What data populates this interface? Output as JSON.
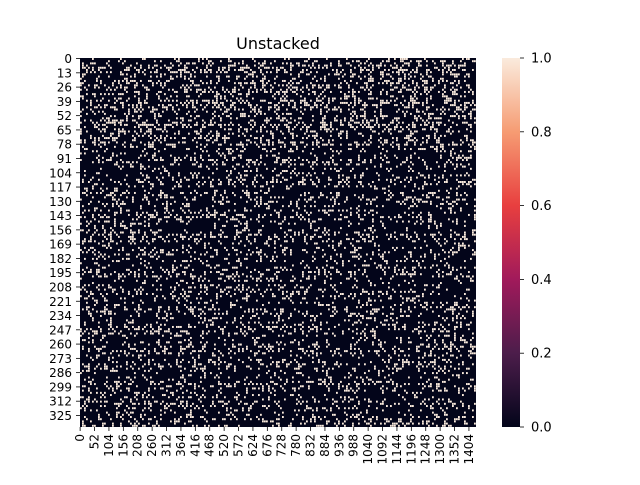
{
  "chart_data": {
    "type": "heatmap",
    "title": "Unstacked",
    "xlabel": "",
    "ylabel": "",
    "rows": 336,
    "cols": 1430,
    "value_range": [
      0,
      1
    ],
    "values_description_note": "",
    "x_tick_labels": [
      "0",
      "52",
      "104",
      "156",
      "208",
      "260",
      "312",
      "364",
      "416",
      "468",
      "520",
      "572",
      "624",
      "676",
      "728",
      "780",
      "832",
      "884",
      "936",
      "988",
      "1040",
      "1092",
      "1144",
      "1196",
      "1248",
      "1300",
      "1352",
      "1404"
    ],
    "y_tick_labels": [
      "0",
      "13",
      "26",
      "39",
      "52",
      "65",
      "78",
      "91",
      "104",
      "117",
      "130",
      "143",
      "156",
      "169",
      "182",
      "195",
      "208",
      "221",
      "234",
      "247",
      "260",
      "273",
      "286",
      "299",
      "312",
      "325"
    ],
    "colorbar": {
      "colormap": "rocket",
      "ticks": [
        "0.0",
        "0.2",
        "0.4",
        "0.6",
        "0.8",
        "1.0"
      ],
      "colors": [
        "#03051a",
        "#4c1d4b",
        "#a11a5b",
        "#e83f3f",
        "#f69c73",
        "#faebdd"
      ]
    },
    "grid": false,
    "legend": "colorbar-right"
  }
}
